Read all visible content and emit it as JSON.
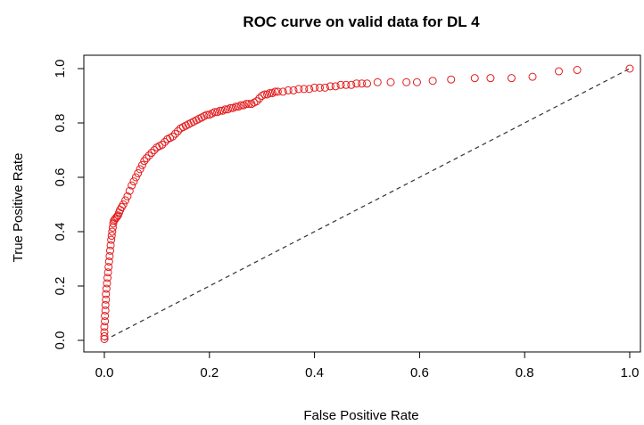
{
  "chart_data": {
    "type": "scatter",
    "title": "ROC curve on valid data for DL 4",
    "xlabel": "False Positive Rate",
    "ylabel": "True Positive Rate",
    "xlim": [
      0.0,
      1.0
    ],
    "ylim": [
      0.0,
      1.0
    ],
    "xticks": [
      "0.0",
      "0.2",
      "0.4",
      "0.6",
      "0.8",
      "1.0"
    ],
    "yticks": [
      "0.0",
      "0.2",
      "0.4",
      "0.6",
      "0.8",
      "1.0"
    ],
    "grid": false,
    "legend": "none",
    "point_color": "#e31a1c",
    "diagonal": {
      "style": "dashed",
      "color": "#333333",
      "from": [
        0,
        0
      ],
      "to": [
        1,
        1
      ]
    },
    "series": [
      {
        "marker": "open-circle",
        "x": [
          0.0,
          0.0,
          0.0,
          0.0,
          0.001,
          0.001,
          0.002,
          0.002,
          0.003,
          0.003,
          0.004,
          0.005,
          0.006,
          0.007,
          0.008,
          0.009,
          0.01,
          0.011,
          0.012,
          0.013,
          0.014,
          0.015,
          0.016,
          0.017,
          0.018,
          0.02,
          0.022,
          0.024,
          0.026,
          0.028,
          0.03,
          0.033,
          0.036,
          0.04,
          0.044,
          0.048,
          0.052,
          0.056,
          0.06,
          0.064,
          0.068,
          0.072,
          0.076,
          0.08,
          0.085,
          0.09,
          0.095,
          0.1,
          0.105,
          0.11,
          0.115,
          0.12,
          0.125,
          0.13,
          0.135,
          0.14,
          0.145,
          0.15,
          0.155,
          0.16,
          0.165,
          0.17,
          0.175,
          0.18,
          0.185,
          0.19,
          0.195,
          0.2,
          0.205,
          0.21,
          0.215,
          0.22,
          0.225,
          0.23,
          0.235,
          0.24,
          0.245,
          0.25,
          0.255,
          0.26,
          0.265,
          0.27,
          0.275,
          0.28,
          0.285,
          0.29,
          0.295,
          0.3,
          0.305,
          0.31,
          0.315,
          0.32,
          0.325,
          0.33,
          0.34,
          0.35,
          0.36,
          0.37,
          0.38,
          0.39,
          0.4,
          0.41,
          0.42,
          0.43,
          0.44,
          0.45,
          0.46,
          0.47,
          0.48,
          0.49,
          0.5,
          0.52,
          0.545,
          0.575,
          0.595,
          0.625,
          0.66,
          0.705,
          0.735,
          0.775,
          0.815,
          0.865,
          0.9,
          1.0
        ],
        "y": [
          0.005,
          0.015,
          0.03,
          0.05,
          0.07,
          0.09,
          0.11,
          0.13,
          0.15,
          0.17,
          0.19,
          0.21,
          0.23,
          0.25,
          0.27,
          0.29,
          0.31,
          0.33,
          0.35,
          0.37,
          0.385,
          0.4,
          0.415,
          0.43,
          0.44,
          0.445,
          0.45,
          0.455,
          0.46,
          0.47,
          0.48,
          0.49,
          0.5,
          0.515,
          0.53,
          0.55,
          0.57,
          0.585,
          0.6,
          0.615,
          0.63,
          0.645,
          0.66,
          0.67,
          0.68,
          0.69,
          0.7,
          0.71,
          0.715,
          0.72,
          0.73,
          0.74,
          0.745,
          0.75,
          0.76,
          0.77,
          0.78,
          0.785,
          0.79,
          0.795,
          0.8,
          0.805,
          0.81,
          0.815,
          0.82,
          0.825,
          0.83,
          0.83,
          0.835,
          0.84,
          0.84,
          0.845,
          0.845,
          0.85,
          0.85,
          0.855,
          0.855,
          0.86,
          0.86,
          0.865,
          0.865,
          0.87,
          0.87,
          0.87,
          0.875,
          0.88,
          0.89,
          0.9,
          0.905,
          0.905,
          0.91,
          0.91,
          0.915,
          0.915,
          0.915,
          0.92,
          0.92,
          0.925,
          0.925,
          0.925,
          0.93,
          0.93,
          0.93,
          0.935,
          0.935,
          0.94,
          0.94,
          0.94,
          0.945,
          0.945,
          0.945,
          0.95,
          0.95,
          0.95,
          0.95,
          0.955,
          0.96,
          0.965,
          0.965,
          0.965,
          0.97,
          0.99,
          0.995,
          1.0
        ]
      }
    ]
  }
}
